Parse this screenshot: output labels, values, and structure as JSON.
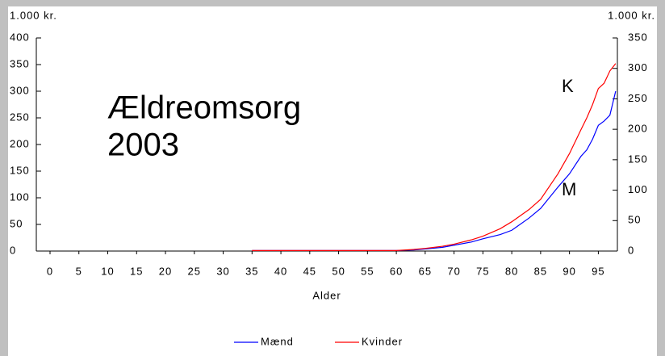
{
  "chart_data": {
    "type": "line",
    "title": [
      "Ældreomsorg",
      "2003"
    ],
    "y_unit_label": "1.000 kr.",
    "y2_unit_label": "1.000 kr.",
    "xlabel": "Alder",
    "annotations": [
      "K",
      "M"
    ],
    "x": [
      35,
      40,
      45,
      50,
      55,
      60,
      63,
      65,
      68,
      70,
      73,
      75,
      78,
      80,
      83,
      85,
      88,
      90,
      92,
      93,
      94,
      95,
      96,
      97,
      98
    ],
    "series": [
      {
        "name": "Mænd",
        "color": "#0000ff",
        "values": [
          1,
          1,
          1,
          1,
          1,
          1,
          2,
          4,
          7,
          11,
          17,
          23,
          31,
          39,
          62,
          80,
          120,
          145,
          178,
          190,
          210,
          236,
          244,
          255,
          300
        ]
      },
      {
        "name": "Kvinder",
        "color": "#ff0000",
        "values": [
          1,
          1,
          1,
          1,
          1,
          1,
          3,
          5,
          9,
          13,
          21,
          28,
          42,
          55,
          78,
          97,
          145,
          183,
          228,
          250,
          275,
          305,
          315,
          338,
          352
        ]
      }
    ],
    "xlim": [
      0,
      98.3
    ],
    "xticks": [
      0,
      5,
      10,
      15,
      20,
      25,
      30,
      35,
      40,
      45,
      50,
      55,
      60,
      65,
      70,
      75,
      80,
      85,
      90,
      95
    ],
    "ylim": [
      0,
      400
    ],
    "yticks": [
      0,
      50,
      100,
      150,
      200,
      250,
      300,
      350,
      400
    ],
    "y2lim": [
      0,
      350
    ],
    "y2ticks": [
      0,
      50,
      100,
      150,
      200,
      250,
      300,
      350
    ],
    "legend": "bottom",
    "grid": false
  }
}
